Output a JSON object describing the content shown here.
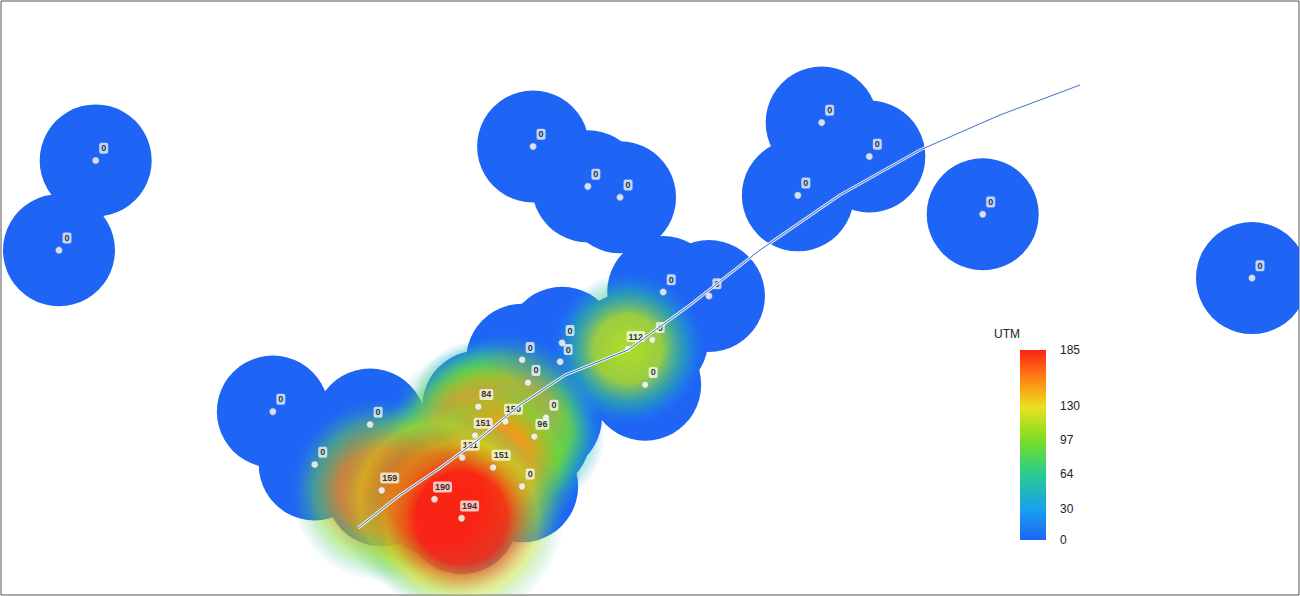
{
  "chart_data": {
    "type": "map",
    "xlim": [
      -80.6,
      -60.45
    ],
    "ylim": [
      44.34,
      50.3
    ],
    "tick_labels": false,
    "data_labels": true,
    "colorbar": {
      "title": "UTM",
      "range": [
        0,
        185
      ],
      "ticks": [
        0,
        30,
        64,
        97,
        130,
        185
      ]
    },
    "points": [
      {
        "lon": -79.13,
        "lat": 48.7,
        "value": 0
      },
      {
        "lon": -79.7,
        "lat": 47.8,
        "value": 0
      },
      {
        "lon": -72.34,
        "lat": 48.84,
        "value": 0
      },
      {
        "lon": -71.49,
        "lat": 48.44,
        "value": 0
      },
      {
        "lon": -70.99,
        "lat": 48.33,
        "value": 0
      },
      {
        "lon": -67.86,
        "lat": 49.08,
        "value": 0
      },
      {
        "lon": -67.12,
        "lat": 48.74,
        "value": 0
      },
      {
        "lon": -68.23,
        "lat": 48.35,
        "value": 0
      },
      {
        "lon": -65.36,
        "lat": 48.16,
        "value": 0
      },
      {
        "lon": -61.18,
        "lat": 47.52,
        "value": 0
      },
      {
        "lon": -70.32,
        "lat": 47.38,
        "value": 0
      },
      {
        "lon": -69.61,
        "lat": 47.34,
        "value": 0
      },
      {
        "lon": -70.49,
        "lat": 46.9,
        "value": 0
      },
      {
        "lon": -71.89,
        "lat": 46.87,
        "value": 0
      },
      {
        "lon": -72.51,
        "lat": 46.7,
        "value": 0
      },
      {
        "lon": -71.92,
        "lat": 46.68,
        "value": 0
      },
      {
        "lon": -72.42,
        "lat": 46.47,
        "value": 0
      },
      {
        "lon": -70.6,
        "lat": 46.45,
        "value": 0
      },
      {
        "lon": -76.38,
        "lat": 46.18,
        "value": 0
      },
      {
        "lon": -74.87,
        "lat": 46.05,
        "value": 0
      },
      {
        "lon": -75.73,
        "lat": 45.65,
        "value": 0
      },
      {
        "lon": -72.14,
        "lat": 46.12,
        "value": 0
      },
      {
        "lon": -72.51,
        "lat": 45.43,
        "value": 0
      },
      {
        "lon": -73.19,
        "lat": 46.23,
        "value": 84
      },
      {
        "lon": -72.32,
        "lat": 45.93,
        "value": 96
      },
      {
        "lon": -70.87,
        "lat": 46.81,
        "value": 112
      },
      {
        "lon": -73.44,
        "lat": 45.72,
        "value": 131
      },
      {
        "lon": -72.77,
        "lat": 46.08,
        "value": 150
      },
      {
        "lon": -73.24,
        "lat": 45.94,
        "value": 151
      },
      {
        "lon": -72.96,
        "lat": 45.62,
        "value": 151
      },
      {
        "lon": -74.69,
        "lat": 45.39,
        "value": 159
      },
      {
        "lon": -73.87,
        "lat": 45.3,
        "value": 190
      },
      {
        "lon": -73.45,
        "lat": 45.11,
        "value": 194
      }
    ]
  }
}
